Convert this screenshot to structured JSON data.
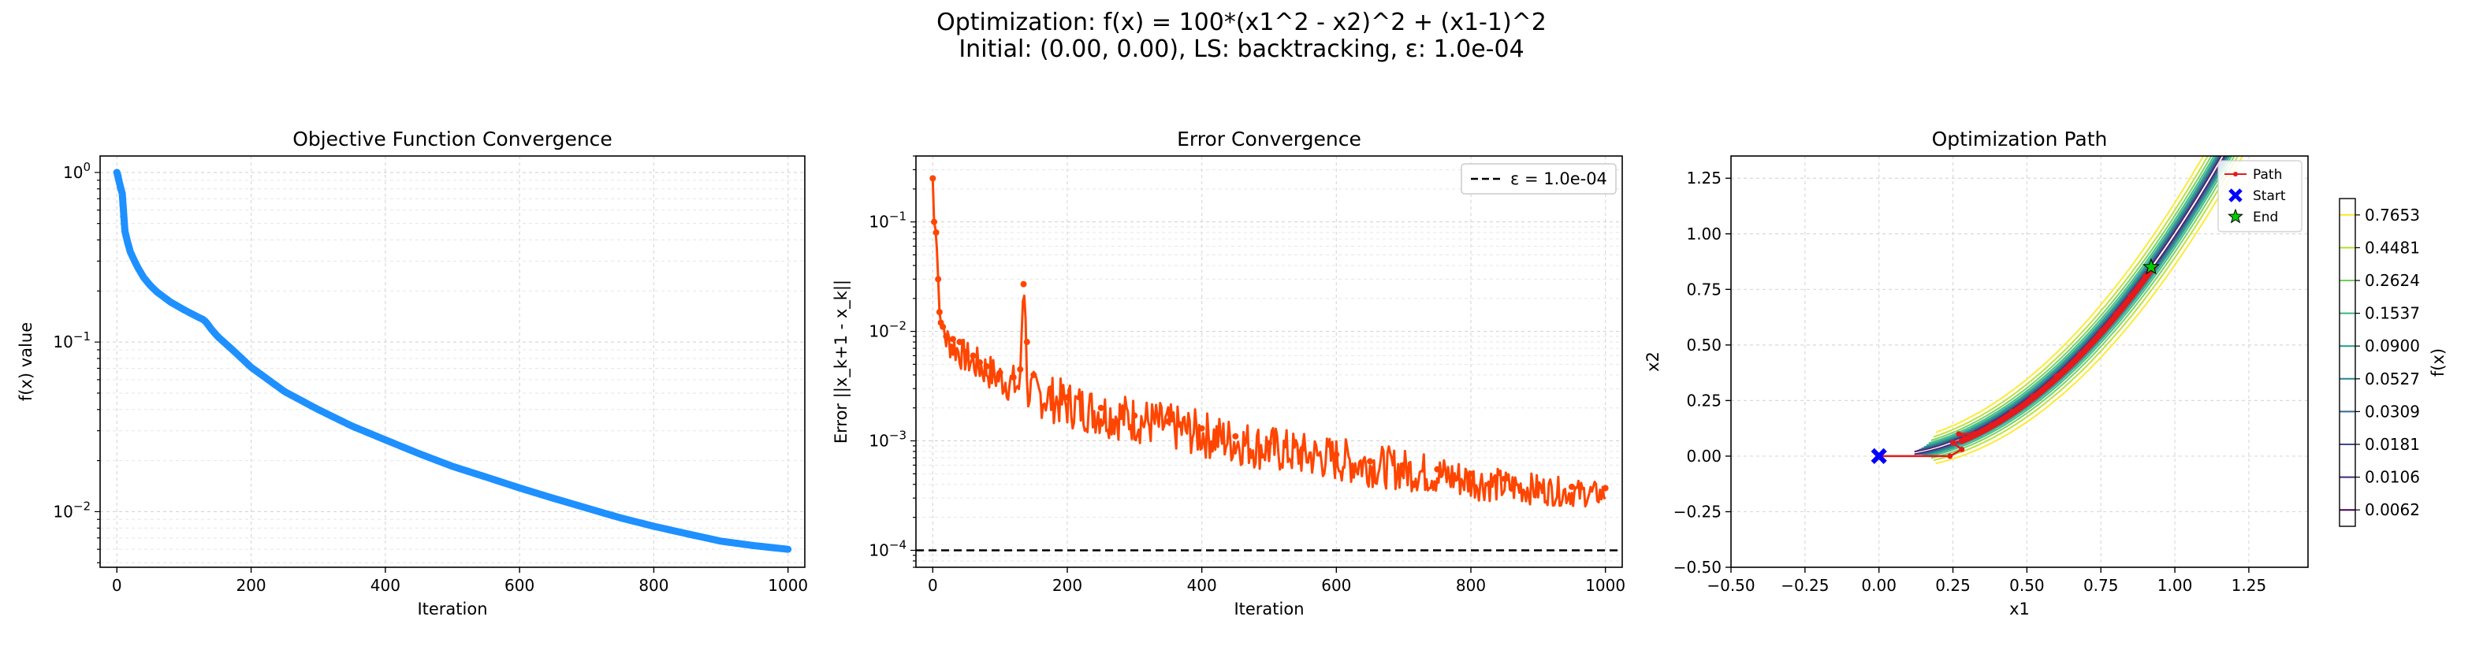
{
  "figure": {
    "title_line1": "Optimization: f(x) = 100*(x1^2 - x2)^2 + (x1-1)^2",
    "title_line2": "Initial: (0.00, 0.00), LS: backtracking, ε: 1.0e-04"
  },
  "chart_data": [
    {
      "type": "line",
      "title": "Objective Function Convergence",
      "xlabel": "Iteration",
      "ylabel": "f(x) value",
      "yscale": "log",
      "xlim": [
        -25,
        1025
      ],
      "ylim": [
        0.0047,
        1.25
      ],
      "xticks": [
        0,
        200,
        400,
        600,
        800,
        1000
      ],
      "yticks": [
        {
          "value": 1,
          "label": "10^0"
        },
        {
          "value": 0.1,
          "label": "10^-1"
        },
        {
          "value": 0.01,
          "label": "10^-2"
        }
      ],
      "grid": true,
      "color": "#1e90ff",
      "series": [
        {
          "marker": "circle",
          "x": [
            0,
            2,
            5,
            8,
            10,
            12,
            15,
            20,
            30,
            40,
            50,
            60,
            80,
            100,
            120,
            130,
            135,
            140,
            150,
            175,
            200,
            250,
            300,
            350,
            400,
            450,
            500,
            550,
            600,
            650,
            700,
            750,
            800,
            850,
            900,
            950,
            1000
          ],
          "y": [
            1.0,
            0.95,
            0.82,
            0.75,
            0.55,
            0.45,
            0.4,
            0.34,
            0.28,
            0.24,
            0.215,
            0.197,
            0.172,
            0.155,
            0.141,
            0.135,
            0.128,
            0.12,
            0.108,
            0.088,
            0.071,
            0.051,
            0.04,
            0.032,
            0.0265,
            0.022,
            0.0185,
            0.016,
            0.0138,
            0.012,
            0.0105,
            0.0092,
            0.0082,
            0.0074,
            0.0067,
            0.0063,
            0.006
          ]
        }
      ]
    },
    {
      "type": "line",
      "title": "Error Convergence",
      "xlabel": "Iteration",
      "ylabel": "Error ||x_k+1 - x_k||",
      "yscale": "log",
      "xlim": [
        -25,
        1025
      ],
      "ylim": [
        7e-05,
        0.4
      ],
      "xticks": [
        0,
        200,
        400,
        600,
        800,
        1000
      ],
      "yticks": [
        {
          "value": 0.1,
          "label": "10^-1"
        },
        {
          "value": 0.01,
          "label": "10^-2"
        },
        {
          "value": 0.001,
          "label": "10^-3"
        },
        {
          "value": 0.0001,
          "label": "10^-4"
        }
      ],
      "grid": true,
      "color": "#ff4500",
      "legend": {
        "position": "top-right",
        "entries": [
          "ε = 1.0e-04"
        ]
      },
      "reference_line": {
        "y": 0.0001,
        "label": "ε = 1.0e-04",
        "style": "dashed",
        "color": "#000000"
      },
      "series": [
        {
          "marker": "circle",
          "x": [
            0,
            2,
            5,
            8,
            10,
            12,
            15,
            20,
            30,
            40,
            50,
            60,
            70,
            80,
            100,
            120,
            130,
            135,
            140,
            150,
            175,
            200,
            250,
            300,
            350,
            400,
            450,
            500,
            550,
            600,
            650,
            700,
            750,
            800,
            850,
            900,
            950,
            1000
          ],
          "y": [
            0.25,
            0.1,
            0.08,
            0.03,
            0.015,
            0.012,
            0.011,
            0.009,
            0.0085,
            0.008,
            0.0065,
            0.006,
            0.0052,
            0.0048,
            0.0042,
            0.0038,
            0.0045,
            0.027,
            0.008,
            0.004,
            0.003,
            0.0025,
            0.002,
            0.0017,
            0.0015,
            0.0013,
            0.0011,
            0.00095,
            0.00085,
            0.00075,
            0.00065,
            0.0006,
            0.00055,
            0.0005,
            0.00045,
            0.0004,
            0.00038,
            0.00037
          ]
        }
      ],
      "band": {
        "x": [
          0,
          10,
          20,
          40,
          60,
          80,
          100,
          130,
          160,
          200,
          250,
          300,
          350,
          400,
          450,
          500,
          550,
          600,
          650,
          700,
          750,
          800,
          850,
          900,
          950,
          1000
        ],
        "low": [
          0.25,
          0.012,
          0.006,
          0.0045,
          0.0036,
          0.003,
          0.0025,
          0.002,
          0.0016,
          0.0013,
          0.0011,
          0.00095,
          0.00082,
          0.0007,
          0.0006,
          0.00052,
          0.00047,
          0.00042,
          0.00038,
          0.00035,
          0.00032,
          0.00029,
          0.00027,
          0.00026,
          0.00025,
          0.00025
        ],
        "high": [
          0.25,
          0.02,
          0.012,
          0.009,
          0.0075,
          0.0065,
          0.0055,
          0.0048,
          0.0042,
          0.0036,
          0.003,
          0.0026,
          0.0022,
          0.0019,
          0.0016,
          0.0014,
          0.0012,
          0.0011,
          0.00095,
          0.00085,
          0.00075,
          0.00065,
          0.00055,
          0.0005,
          0.00045,
          0.00042
        ]
      }
    },
    {
      "type": "contour",
      "title": "Optimization Path",
      "xlabel": "x1",
      "ylabel": "x2",
      "xlim": [
        -0.5,
        1.45
      ],
      "ylim": [
        -0.5,
        1.35
      ],
      "xticks": [
        -0.5,
        -0.25,
        0.0,
        0.25,
        0.5,
        0.75,
        1.0,
        1.25
      ],
      "yticks": [
        -0.5,
        -0.25,
        0.0,
        0.25,
        0.5,
        0.75,
        1.0,
        1.25
      ],
      "tick_format": "0.00",
      "grid": true,
      "legend": {
        "position": "top-right",
        "entries": [
          "Path",
          "Start",
          "End"
        ]
      },
      "start": {
        "x": 0.0,
        "y": 0.0,
        "marker": "X",
        "color": "#0000ff"
      },
      "end": {
        "x": 0.92,
        "y": 0.85,
        "marker": "star",
        "color": "#00cc00"
      },
      "path_color": "#e41a1c",
      "path": {
        "x": [
          0.0,
          0.24,
          0.28,
          0.25,
          0.3,
          0.27,
          0.32,
          0.38,
          0.45,
          0.52,
          0.6,
          0.68,
          0.75,
          0.8,
          0.85,
          0.88,
          0.9,
          0.92
        ],
        "y": [
          0.0,
          0.0,
          0.03,
          0.06,
          0.08,
          0.1,
          0.1,
          0.14,
          0.2,
          0.27,
          0.36,
          0.46,
          0.56,
          0.64,
          0.72,
          0.77,
          0.81,
          0.85
        ]
      },
      "contour_levels": [
        0.0062,
        0.0106,
        0.0181,
        0.0309,
        0.0527,
        0.09,
        0.1537,
        0.2624,
        0.4481,
        0.7653
      ],
      "colorbar": {
        "label": "f(x)",
        "ticks": [
          "0.0062",
          "0.0106",
          "0.0181",
          "0.0309",
          "0.0527",
          "0.0900",
          "0.1537",
          "0.2624",
          "0.4481",
          "0.7653"
        ],
        "colors": [
          "#440154",
          "#482878",
          "#3e4989",
          "#31688e",
          "#26828e",
          "#1f9e89",
          "#35b779",
          "#6ece58",
          "#b5de2b",
          "#fde725"
        ]
      }
    }
  ]
}
